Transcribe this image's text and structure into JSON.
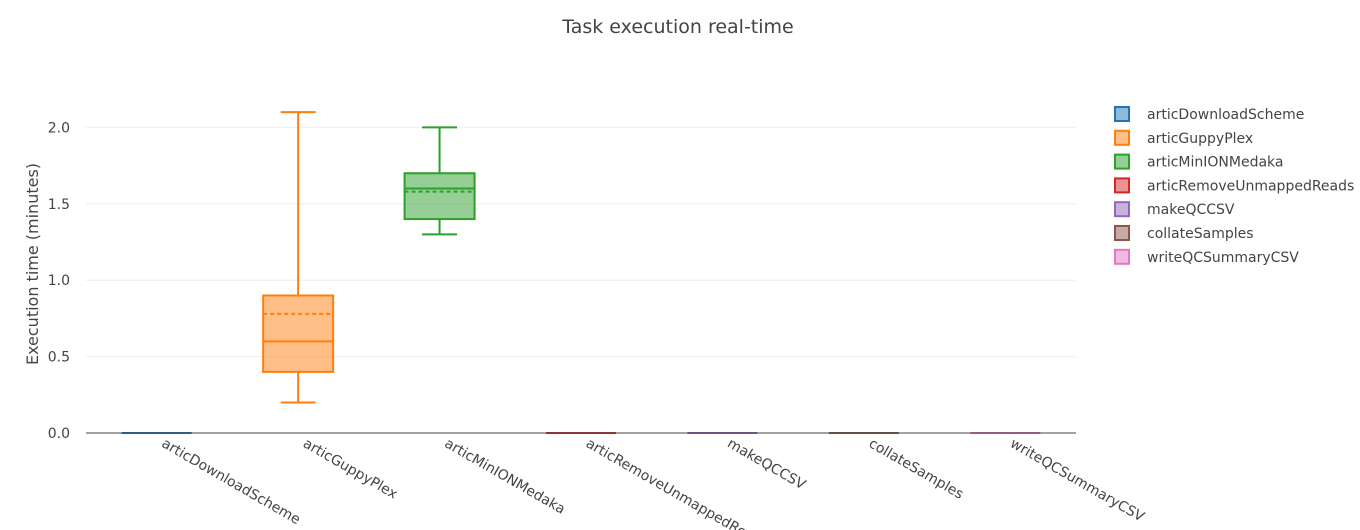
{
  "chart_data": {
    "type": "box",
    "title": "Task execution real-time",
    "xlabel": "",
    "ylabel": "Execution time (minutes)",
    "ylim": [
      0,
      2.2
    ],
    "yticks": [
      "0.0",
      "0.5",
      "1.0",
      "1.5",
      "2.0"
    ],
    "grid": true,
    "legend_position": "right",
    "categories": [
      "articDownloadScheme",
      "articGuppyPlex",
      "articMinIONMedaka",
      "articRemoveUnmappedReads",
      "makeQCCSV",
      "collateSamples",
      "writeQCSummaryCSV"
    ],
    "series": [
      {
        "name": "articDownloadScheme",
        "color": "#1f77b4",
        "min": 0,
        "q1": 0,
        "median": 0,
        "q3": 0,
        "max": 0,
        "mean": 0
      },
      {
        "name": "articGuppyPlex",
        "color": "#ff7f0e",
        "min": 0.2,
        "q1": 0.4,
        "median": 0.6,
        "q3": 0.9,
        "max": 2.1,
        "mean": 0.78
      },
      {
        "name": "articMinIONMedaka",
        "color": "#2ca02c",
        "min": 1.3,
        "q1": 1.4,
        "median": 1.6,
        "q3": 1.7,
        "max": 2.0,
        "mean": 1.58
      },
      {
        "name": "articRemoveUnmappedReads",
        "color": "#d62728",
        "min": 0,
        "q1": 0,
        "median": 0,
        "q3": 0,
        "max": 0,
        "mean": 0
      },
      {
        "name": "makeQCCSV",
        "color": "#9467bd",
        "min": 0,
        "q1": 0,
        "median": 0,
        "q3": 0,
        "max": 0,
        "mean": 0
      },
      {
        "name": "collateSamples",
        "color": "#8c564b",
        "min": 0,
        "q1": 0,
        "median": 0,
        "q3": 0,
        "max": 0,
        "mean": 0
      },
      {
        "name": "writeQCSummaryCSV",
        "color": "#e377c2",
        "min": 0,
        "q1": 0,
        "median": 0,
        "q3": 0,
        "max": 0,
        "mean": 0
      }
    ]
  }
}
